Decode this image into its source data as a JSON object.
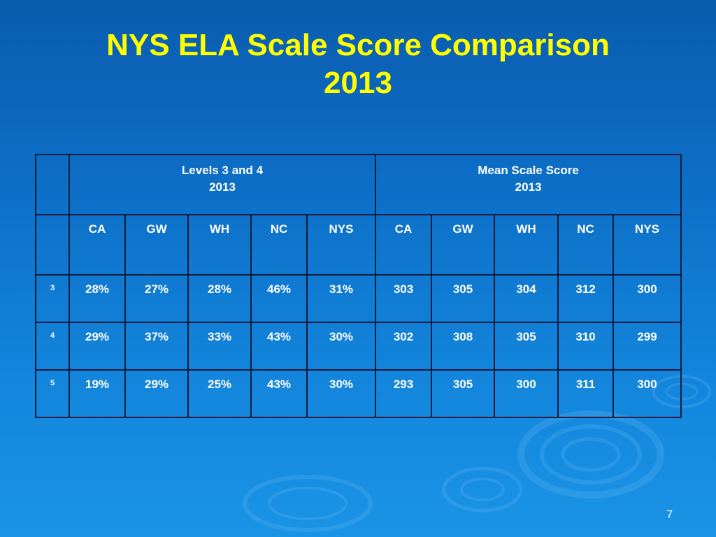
{
  "slide": {
    "title_line1": "NYS ELA Scale Score Comparison",
    "title_line2": "2013",
    "page_number": "7"
  },
  "table": {
    "groups": [
      {
        "label": "Levels 3 and 4",
        "year": "2013"
      },
      {
        "label": "Mean Scale Score",
        "year": "2013"
      }
    ],
    "columns": [
      "CA",
      "GW",
      "WH",
      "NC",
      "NYS",
      "CA",
      "GW",
      "WH",
      "NC",
      "NYS"
    ],
    "rows": [
      {
        "grade": "3",
        "cells": [
          "28%",
          "27%",
          "28%",
          "46%",
          "31%",
          "303",
          "305",
          "304",
          "312",
          "300"
        ]
      },
      {
        "grade": "4",
        "cells": [
          "29%",
          "37%",
          "33%",
          "43%",
          "30%",
          "302",
          "308",
          "305",
          "310",
          "299"
        ]
      },
      {
        "grade": "5",
        "cells": [
          "19%",
          "29%",
          "25%",
          "43%",
          "30%",
          "293",
          "305",
          "300",
          "311",
          "300"
        ]
      }
    ]
  },
  "colors": {
    "title": "#ffff00",
    "text": "#ffffff",
    "border": "#0b1a3a",
    "background": "#0d6fc7"
  }
}
